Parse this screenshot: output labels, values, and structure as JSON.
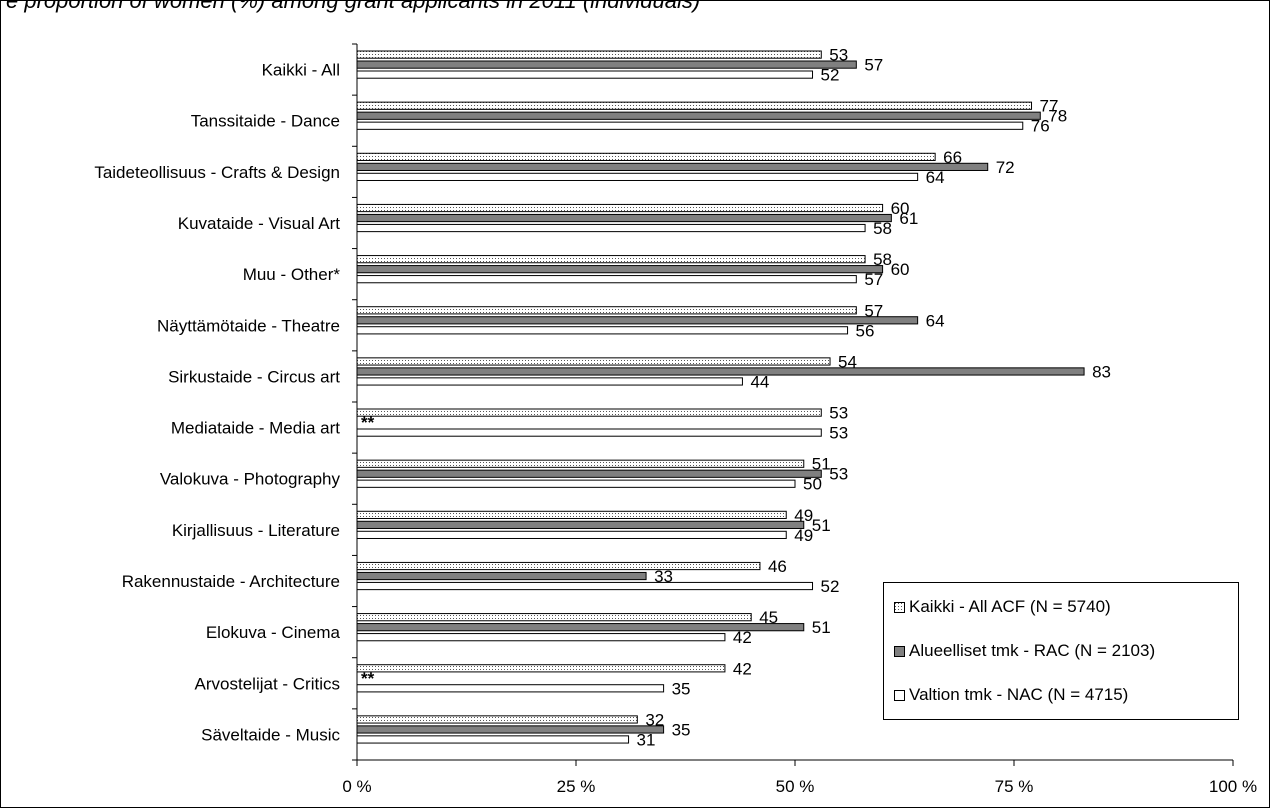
{
  "chart_data": {
    "type": "bar",
    "orientation": "horizontal",
    "title": "e proportion of women (%) among grant applicants in 2011 (individuals)",
    "categories": [
      "Kaikki  - All",
      "Tanssitaide - Dance",
      "Taideteollisuus - Crafts & Design",
      "Kuvataide - Visual Art",
      "Muu - Other*",
      "Näyttämötaide - Theatre",
      "Sirkustaide - Circus art",
      "Mediataide - Media art",
      "Valokuva - Photography",
      "Kirjallisuus - Literature",
      "Rakennustaide - Architecture",
      "Elokuva - Cinema",
      "Arvostelijat - Critics",
      "Säveltaide - Music"
    ],
    "series": [
      {
        "name": "Kaikki - All ACF (N = 5740)",
        "values": [
          53,
          77,
          66,
          60,
          58,
          57,
          54,
          53,
          51,
          49,
          46,
          45,
          42,
          32
        ],
        "color": "#ffffff",
        "pattern": "dotted"
      },
      {
        "name": "Alueelliset tmk - RAC (N = 2103)",
        "values": [
          57,
          78,
          72,
          61,
          60,
          64,
          83,
          null,
          53,
          51,
          33,
          51,
          null,
          35
        ],
        "color": "#808080",
        "pattern": "solid"
      },
      {
        "name": "Valtion tmk  - NAC (N = 4715)",
        "values": [
          52,
          76,
          64,
          58,
          57,
          56,
          44,
          53,
          50,
          49,
          52,
          42,
          35,
          31
        ],
        "color": "#ffffff",
        "pattern": "solid"
      }
    ],
    "missing_label": "**",
    "xlim": [
      0,
      100
    ],
    "xticks": [
      "0 %",
      "25 %",
      "50 %",
      "75 %",
      "100 %"
    ],
    "grid": false,
    "legend_position": "bottom-right"
  }
}
